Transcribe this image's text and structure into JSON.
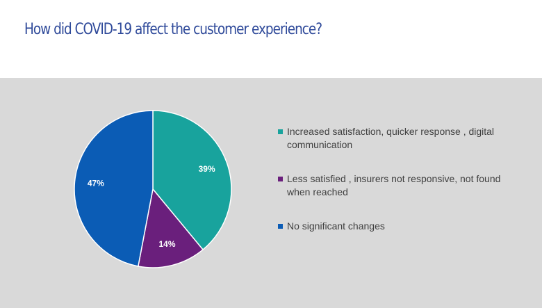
{
  "title": "How did COVID-19 affect the customer experience?",
  "chart_data": {
    "type": "pie",
    "slices": [
      {
        "label": "Increased satisfaction,  quicker response , digital communication",
        "value": 39,
        "display": "39%",
        "color": "#18a39d"
      },
      {
        "label": "Less satisfied , insurers not responsive, not found when reached",
        "value": 14,
        "display": "14%",
        "color": "#6a1f7c"
      },
      {
        "label": "No significant changes",
        "value": 47,
        "display": "47%",
        "color": "#0b5cb5"
      }
    ],
    "legend_position": "right",
    "background": "#d9d9d9"
  }
}
